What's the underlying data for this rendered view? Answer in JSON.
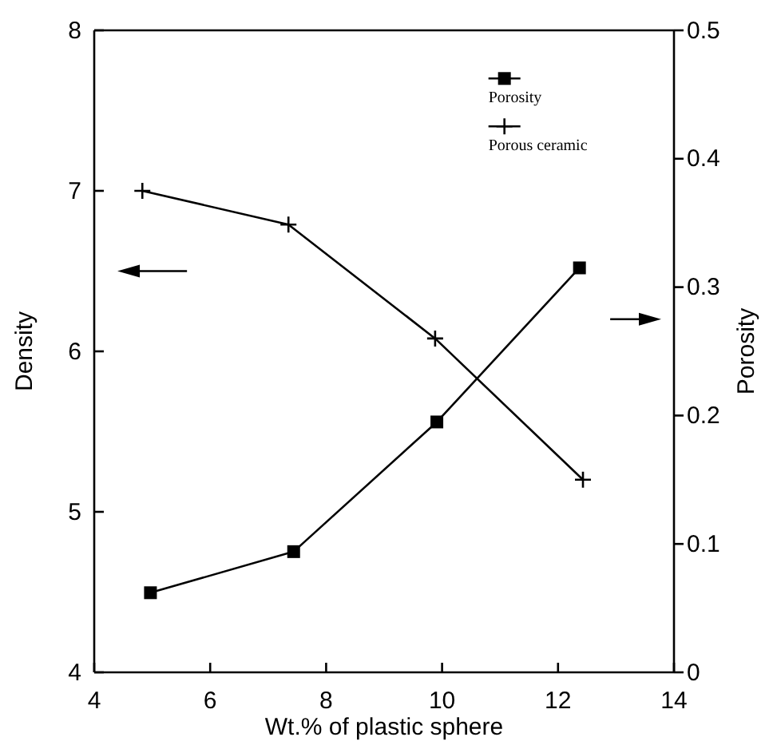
{
  "chart_data": {
    "type": "line",
    "xlabel": "Wt.% of plastic sphere",
    "ylabel": "Density",
    "y2label": "Porosity",
    "xlim": [
      4,
      14
    ],
    "xticks": [
      4,
      6,
      8,
      10,
      12,
      14
    ],
    "ylim": [
      4,
      8
    ],
    "yticks": [
      4,
      5,
      6,
      7,
      8
    ],
    "y2lim": [
      0,
      0.5
    ],
    "y2ticks": [
      0,
      0.1,
      0.2,
      0.3,
      0.4,
      0.5
    ],
    "grid": false,
    "legend": "top right",
    "series": [
      {
        "name": "Porosity",
        "color": "#000000",
        "axis": "y2",
        "marker": "square",
        "x": [
          4.97,
          7.44,
          9.91,
          12.37
        ],
        "values": [
          0.062,
          0.094,
          0.195,
          0.315
        ]
      },
      {
        "name": "Porous ceramic",
        "color": "#000000",
        "axis": "y",
        "marker": "cross",
        "x": [
          4.83,
          7.35,
          9.88,
          12.43
        ],
        "values": [
          7.0,
          6.79,
          6.08,
          5.2
        ]
      }
    ]
  }
}
